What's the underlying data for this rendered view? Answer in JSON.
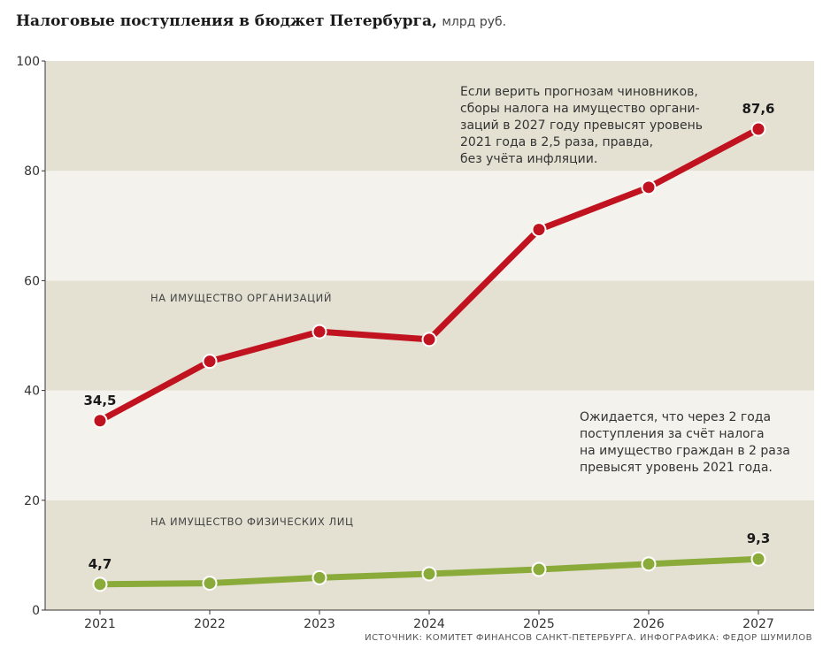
{
  "header": {
    "title": "Налоговые поступления в бюджет Петербурга,",
    "unit": "млрд руб."
  },
  "source": "ИСТОЧНИК: КОМИТЕТ ФИНАНСОВ САНКТ-ПЕТЕРБУРГА. ИНФОГРАФИКА: ФЕДОР ШУМИЛОВ",
  "chart_data": {
    "type": "line",
    "x": [
      "2021",
      "2022",
      "2023",
      "2024",
      "2025",
      "2026",
      "2027"
    ],
    "ylim": [
      0,
      100
    ],
    "yticks": [
      0,
      20,
      40,
      60,
      80,
      100
    ],
    "grid": "alternating horizontal bands",
    "series": [
      {
        "name": "НА ИМУЩЕСТВО ОРГАНИЗАЦИЙ",
        "color": "#c1121f",
        "values": [
          34.5,
          45.3,
          50.7,
          49.3,
          69.3,
          77.0,
          87.6
        ],
        "labels": [
          {
            "index": 0,
            "text": "34,5"
          },
          {
            "index": 6,
            "text": "87,6"
          }
        ]
      },
      {
        "name": "НА ИМУЩЕСТВО ФИЗИЧЕСКИХ ЛИЦ",
        "color": "#8aab3a",
        "values": [
          4.7,
          4.9,
          5.9,
          6.6,
          7.4,
          8.4,
          9.3
        ],
        "labels": [
          {
            "index": 0,
            "text": "4,7"
          },
          {
            "index": 6,
            "text": "9,3"
          }
        ]
      }
    ],
    "annotations": [
      {
        "lines": [
          "Если верить прогнозам чиновников,",
          "сборы налога на имущество органи-",
          "заций в 2027 году превысят уровень",
          "2021 года в 2,5 раза, правда,",
          "без учёта инфляции."
        ]
      },
      {
        "lines": [
          "Ожидается, что через 2 года",
          "поступления за счёт налога",
          "на имущество граждан в 2 раза",
          "превысят уровень 2021 года."
        ]
      }
    ]
  },
  "colors": {
    "band_dark": "#e4e1d3",
    "band_light": "#f3f2ed",
    "axis": "#333333"
  }
}
